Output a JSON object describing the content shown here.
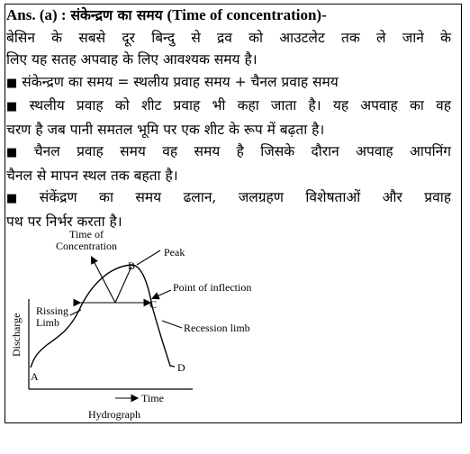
{
  "heading": {
    "ans": "Ans. (a) :",
    "hindi": "संकेन्द्रण का समय",
    "english": "(Time of concentration)-"
  },
  "paragraphs": [
    {
      "bullet": false,
      "lines": [
        "बेसिन के सबसे दूर बिन्दु से द्रव को आउटलेट तक ले जाने के",
        "लिए यह सतह अपवाह के लिए आवश्यक समय है।"
      ]
    },
    {
      "bullet": true,
      "lines": [
        "संकेन्द्रण का समय = स्थलीय प्रवाह समय + चैनल प्रवाह समय"
      ]
    },
    {
      "bullet": true,
      "lines": [
        "स्थलीय प्रवाह को शीट प्रवाह भी कहा जाता है। यह अपवाह का वह",
        "चरण है जब पानी समतल भूमि पर एक शीट के रूप में बढ़ता है।"
      ]
    },
    {
      "bullet": true,
      "lines": [
        "चैनल प्रवाह समय वह समय है जिसके दौरान अपवाह आपनिंग",
        "चैनल से मापन स्थल तक बहता है।"
      ]
    },
    {
      "bullet": true,
      "lines": [
        "संकेंद्रण का समय ढलान, जलग्रहण विशेषताओं  और प्रवाह",
        "पथ पर निर्भर करता है।"
      ]
    }
  ],
  "bullet_symbol": "■",
  "diagram": {
    "time_of_concentration": [
      "Time of",
      "Concentration"
    ],
    "peak": "Peak",
    "point_b": "B",
    "point_of_inflection": "Point of inflection",
    "point_c": "C",
    "rising_limb": [
      "Rissing",
      "Limb"
    ],
    "recession_limb": "Recession limb",
    "discharge": "Discharge",
    "point_a": "A",
    "point_d": "D",
    "time": "Time",
    "caption": "Hydrograph"
  }
}
